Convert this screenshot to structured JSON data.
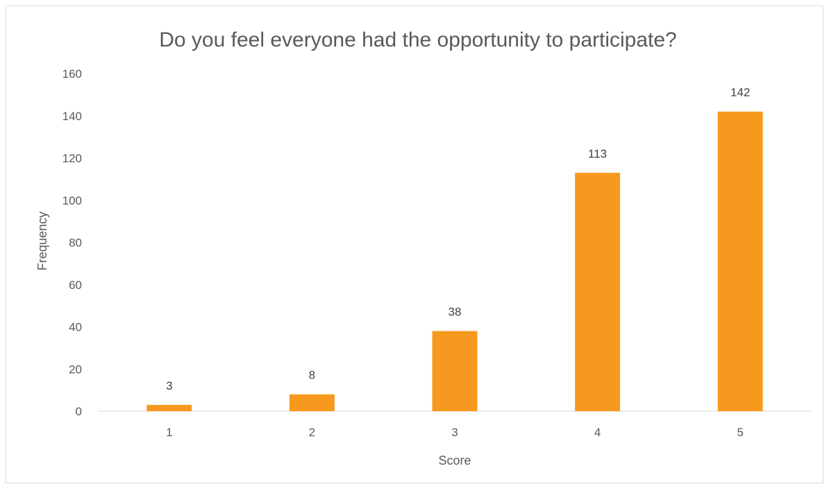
{
  "chart_data": {
    "type": "bar",
    "title": "Do you feel everyone had the opportunity to participate?",
    "xlabel": "Score",
    "ylabel": "Frequency",
    "categories": [
      "1",
      "2",
      "3",
      "4",
      "5"
    ],
    "values": [
      3,
      8,
      38,
      113,
      142
    ],
    "ylim": [
      0,
      160
    ],
    "yticks": [
      0,
      20,
      40,
      60,
      80,
      100,
      120,
      140,
      160
    ],
    "grid": false,
    "legend": "none",
    "bar_color": "#F7991F",
    "data_labels": true
  }
}
